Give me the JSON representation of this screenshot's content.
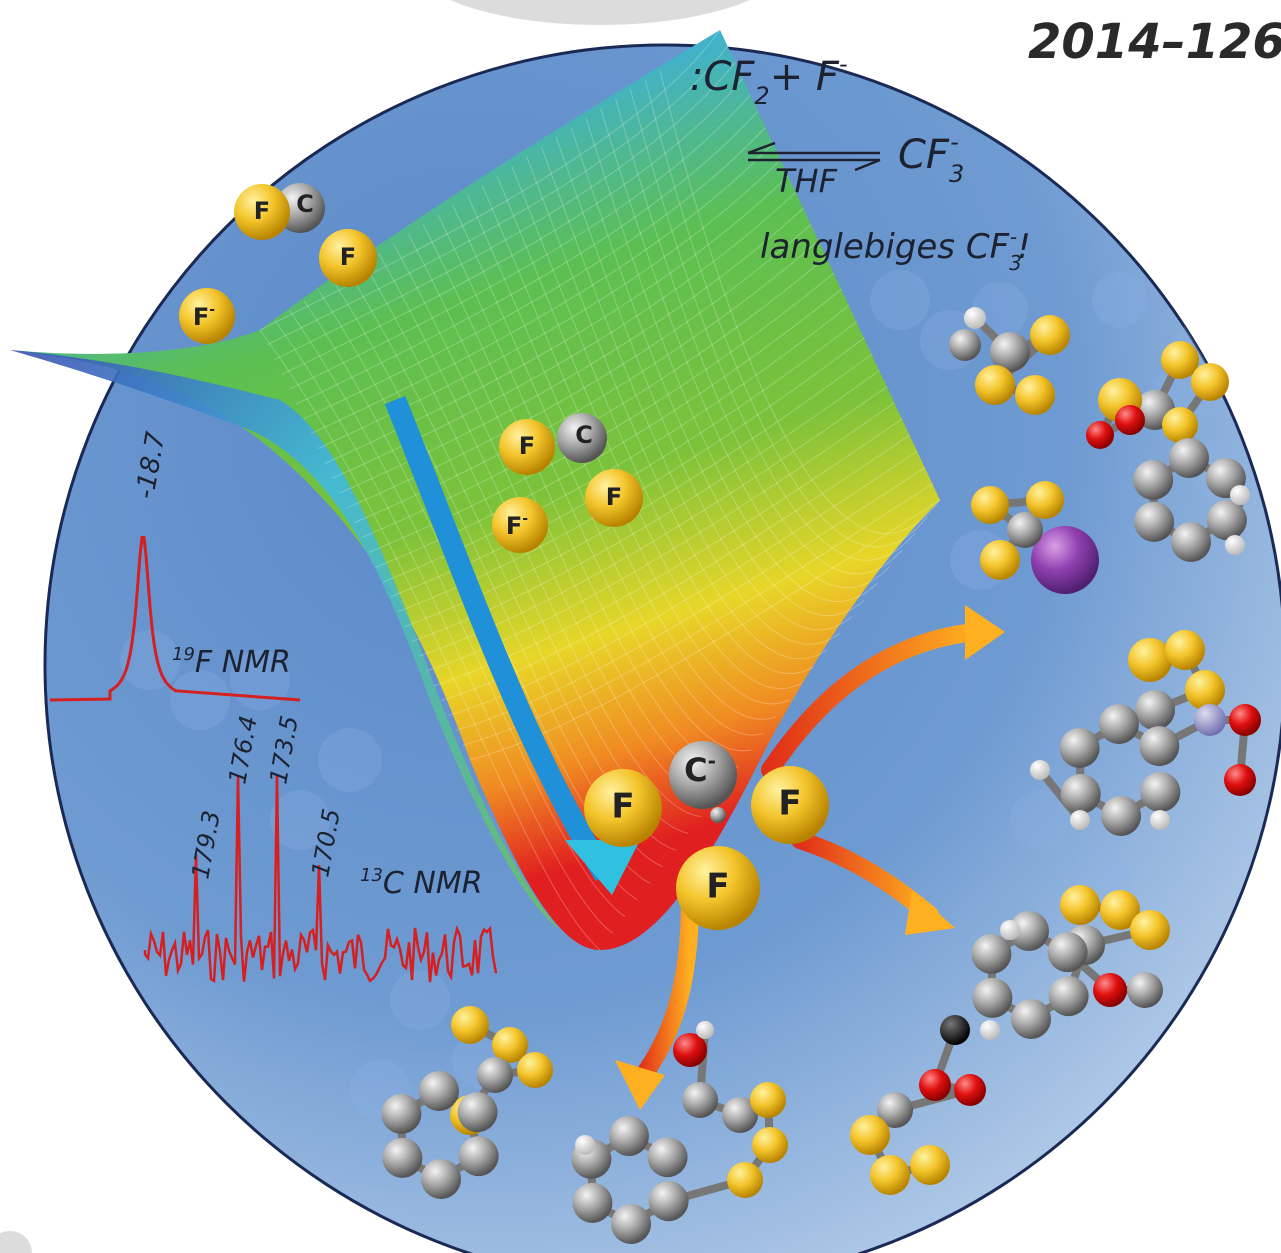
{
  "issue": "2014–126",
  "equation": {
    "reactants": [
      ":CF",
      "2",
      "+ F",
      "-"
    ],
    "solvent": "THF",
    "product": [
      "CF",
      "3",
      "-"
    ]
  },
  "note": [
    "langlebiges CF",
    "3",
    "-",
    "!"
  ],
  "molecules": {
    "carbene_top": [
      "F",
      "C",
      "F"
    ],
    "fluoride_top": [
      "F",
      "-"
    ],
    "carbene_mid": [
      "F",
      "C",
      "F"
    ],
    "fluoride_mid": [
      "F",
      "-"
    ],
    "anion": {
      "center": [
        "C",
        "-"
      ],
      "ligands": [
        "F",
        "F",
        "F"
      ]
    }
  },
  "nmr": {
    "f19": {
      "peak": "-18.7",
      "label": [
        "19",
        "F NMR"
      ]
    },
    "c13": {
      "peaks": [
        "179.3",
        "176.4",
        "173.5",
        "170.5"
      ],
      "label": [
        "13",
        "C NMR"
      ]
    }
  }
}
